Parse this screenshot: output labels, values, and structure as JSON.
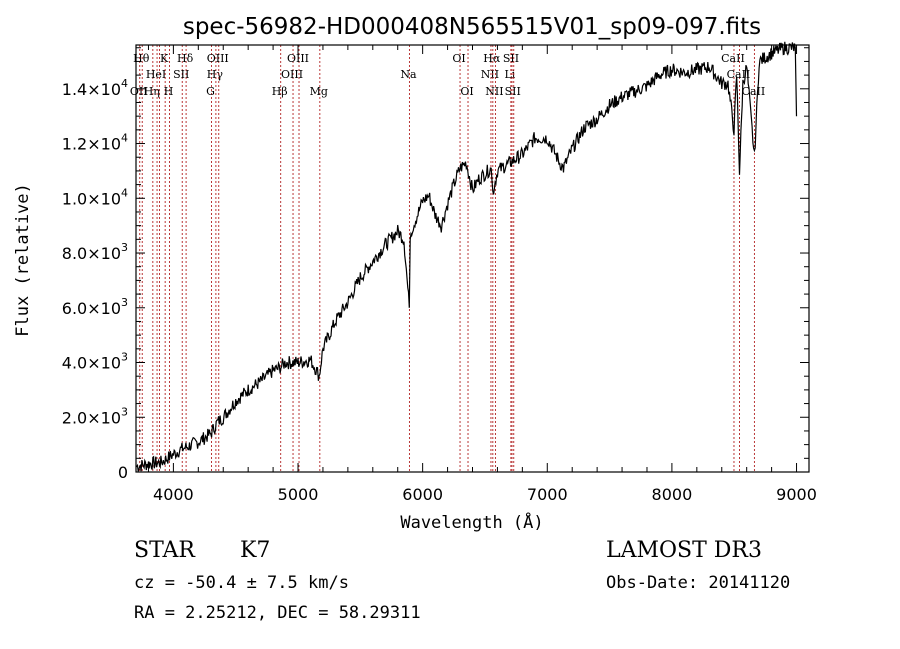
{
  "chart_data": {
    "type": "line",
    "title": "spec-56982-HD000408N565515V01_sp09-097.fits",
    "xlabel": "Wavelength (Å)",
    "ylabel": "Flux (relative)",
    "xlim": [
      3700,
      9100
    ],
    "ylim": [
      0,
      15600
    ],
    "x_ticks": [
      4000,
      5000,
      6000,
      7000,
      8000,
      9000
    ],
    "y_ticks": [
      {
        "value": 0,
        "mantissa": "0",
        "exponent": ""
      },
      {
        "value": 2000,
        "mantissa": "2.0×10",
        "exponent": "3"
      },
      {
        "value": 4000,
        "mantissa": "4.0×10",
        "exponent": "3"
      },
      {
        "value": 6000,
        "mantissa": "6.0×10",
        "exponent": "3"
      },
      {
        "value": 8000,
        "mantissa": "8.0×10",
        "exponent": "3"
      },
      {
        "value": 10000,
        "mantissa": "1.0×10",
        "exponent": "4"
      },
      {
        "value": 12000,
        "mantissa": "1.2×10",
        "exponent": "4"
      },
      {
        "value": 14000,
        "mantissa": "1.4×10",
        "exponent": "4"
      }
    ],
    "series": [
      {
        "name": "spectrum",
        "x": [
          3700,
          3800,
          3900,
          3950,
          4000,
          4050,
          4100,
          4200,
          4300,
          4350,
          4400,
          4500,
          4600,
          4700,
          4800,
          4850,
          4900,
          5000,
          5100,
          5150,
          5170,
          5200,
          5300,
          5400,
          5500,
          5600,
          5700,
          5800,
          5850,
          5893,
          5900,
          5950,
          6000,
          6050,
          6100,
          6150,
          6200,
          6250,
          6300,
          6350,
          6400,
          6450,
          6500,
          6550,
          6563,
          6600,
          6700,
          6800,
          6900,
          7000,
          7100,
          7130,
          7200,
          7300,
          7400,
          7500,
          7600,
          7700,
          7800,
          7900,
          8000,
          8100,
          8200,
          8300,
          8400,
          8450,
          8498,
          8520,
          8542,
          8570,
          8600,
          8662,
          8700,
          8800,
          8900,
          8990,
          9000
        ],
        "values": [
          200,
          300,
          350,
          500,
          650,
          800,
          900,
          1100,
          1400,
          1800,
          2000,
          2600,
          3000,
          3300,
          3700,
          3800,
          4000,
          4000,
          4100,
          3700,
          3500,
          4500,
          5500,
          6200,
          7100,
          7700,
          8300,
          8800,
          8500,
          6000,
          8700,
          9300,
          9900,
          10100,
          9400,
          9000,
          9800,
          10500,
          11100,
          11300,
          10300,
          10700,
          10900,
          11100,
          10200,
          11000,
          11300,
          11600,
          12200,
          12200,
          11300,
          11100,
          11800,
          12600,
          12900,
          13400,
          13700,
          13900,
          14100,
          14500,
          14700,
          14600,
          14700,
          14800,
          14200,
          14200,
          12500,
          14500,
          11000,
          14200,
          14800,
          11500,
          15000,
          15300,
          15500,
          15500,
          13000
        ]
      }
    ],
    "lines": [
      {
        "x": 3750,
        "label": "Hθ",
        "row": 0
      },
      {
        "x": 3730,
        "label": "OII",
        "row": 2
      },
      {
        "x": 3835,
        "label": "Hη",
        "row": 2
      },
      {
        "x": 3869,
        "label": "HeI",
        "row": 1
      },
      {
        "x": 3889,
        "label": "",
        "row": 1
      },
      {
        "x": 3934,
        "label": "K",
        "row": 0
      },
      {
        "x": 3969,
        "label": "H",
        "row": 2
      },
      {
        "x": 4071,
        "label": "SII",
        "row": 1
      },
      {
        "x": 4102,
        "label": "Hδ",
        "row": 0
      },
      {
        "x": 4306,
        "label": "G",
        "row": 2
      },
      {
        "x": 4341,
        "label": "Hγ",
        "row": 1
      },
      {
        "x": 4364,
        "label": "OIII",
        "row": 0
      },
      {
        "x": 4861,
        "label": "Hβ",
        "row": 2
      },
      {
        "x": 4960,
        "label": "OIII",
        "row": 1
      },
      {
        "x": 5008,
        "label": "OIII",
        "row": 0
      },
      {
        "x": 5175,
        "label": "Mg",
        "row": 2
      },
      {
        "x": 5894,
        "label": "Na",
        "row": 1
      },
      {
        "x": 6300,
        "label": "OI",
        "row": 0
      },
      {
        "x": 6364,
        "label": "OI",
        "row": 2
      },
      {
        "x": 6548,
        "label": "NII",
        "row": 1
      },
      {
        "x": 6563,
        "label": "Hα",
        "row": 0
      },
      {
        "x": 6584,
        "label": "NII",
        "row": 2
      },
      {
        "x": 6708,
        "label": "Li",
        "row": 1
      },
      {
        "x": 6717,
        "label": "SII",
        "row": 0
      },
      {
        "x": 6731,
        "label": "SII",
        "row": 2
      },
      {
        "x": 8498,
        "label": "CaII",
        "row": 0
      },
      {
        "x": 8542,
        "label": "CaII",
        "row": 1
      },
      {
        "x": 8662,
        "label": "CaII",
        "row": 2
      }
    ]
  },
  "info": {
    "object_class": "STAR",
    "spectral_type": "K7",
    "redshift": "cz = -50.4 ± 7.5 km/s",
    "coordinates": "RA =   2.25212, DEC =  58.29311",
    "survey": "LAMOST DR3",
    "obs_date": "Obs-Date: 20141120"
  },
  "colors": {
    "line_marker": "#b22222",
    "spectrum": "#000000"
  }
}
